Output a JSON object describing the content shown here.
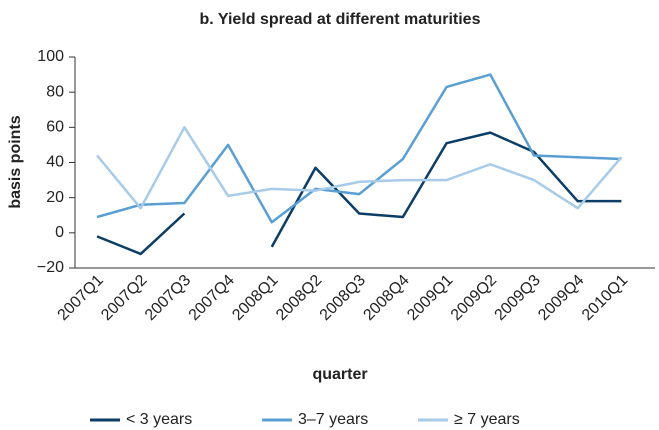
{
  "chart_data": {
    "type": "line",
    "title": "b. Yield spread at different maturities",
    "xlabel": "quarter",
    "ylabel": "basis points",
    "categories": [
      "2007Q1",
      "2007Q2",
      "2007Q3",
      "2007Q4",
      "2008Q1",
      "2008Q2",
      "2008Q3",
      "2008Q4",
      "2009Q1",
      "2009Q2",
      "2009Q3",
      "2009Q4",
      "2010Q1"
    ],
    "series": [
      {
        "name": "< 3 years",
        "color": "#0b3d66",
        "values": [
          -2,
          -12,
          11,
          null,
          -8,
          37,
          11,
          9,
          51,
          57,
          46,
          18,
          18
        ]
      },
      {
        "name": "3–7 years",
        "color": "#5a9fd4",
        "values": [
          9,
          16,
          17,
          50,
          6,
          25,
          22,
          42,
          83,
          90,
          44,
          43,
          42
        ]
      },
      {
        "name": "≥ 7 years",
        "color": "#a7cbe8",
        "values": [
          44,
          14,
          60,
          21,
          25,
          24,
          29,
          30,
          30,
          39,
          30,
          14,
          43
        ]
      }
    ],
    "ylim": [
      -20,
      100
    ],
    "yticks": [
      {
        "value": -20,
        "label": "−20"
      },
      0,
      20,
      40,
      60,
      80,
      100
    ],
    "grid": false,
    "legend": "bottom"
  }
}
